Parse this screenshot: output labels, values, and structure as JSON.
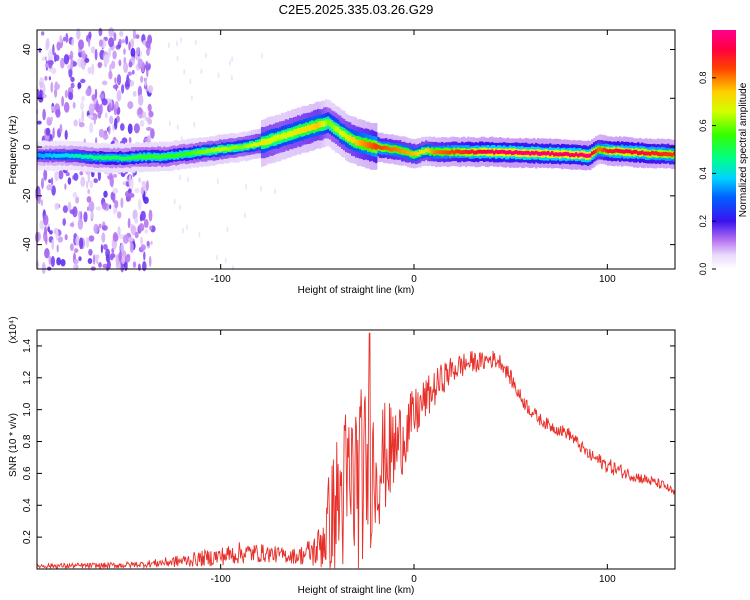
{
  "title": "C2E5.2025.335.03.26.G29",
  "chart_data": [
    {
      "type": "heatmap",
      "xlabel": "Height of straight line (km)",
      "ylabel": "Frequency (Hz)",
      "xlim": [
        -195,
        135
      ],
      "ylim": [
        -50,
        48
      ],
      "x_ticks": [
        -100,
        0,
        100
      ],
      "y_ticks": [
        -40,
        -20,
        0,
        20,
        40
      ],
      "colorbar": {
        "label": "Normalized spectral amplitude",
        "range": [
          0,
          1
        ],
        "ticks": [
          "0.0",
          "0.2",
          "0.4",
          "0.6",
          "0.8"
        ]
      },
      "ridge": {
        "x": [
          -195,
          -180,
          -160,
          -150,
          -140,
          -130,
          -120,
          -110,
          -100,
          -90,
          -80,
          -70,
          -60,
          -50,
          -45,
          -40,
          -35,
          -30,
          -25,
          -20,
          -10,
          0,
          5,
          10,
          20,
          40,
          60,
          80,
          90,
          95,
          100,
          110,
          120,
          135
        ],
        "freq": [
          -3.5,
          -3.5,
          -4.5,
          -4.5,
          -4,
          -4,
          -3,
          -2,
          -1,
          0,
          1.5,
          4,
          6.5,
          9,
          10,
          7,
          4,
          2,
          1,
          0,
          -1,
          -3,
          -1.5,
          -2,
          -2,
          -2,
          -2.5,
          -3,
          -3.5,
          -1,
          -1.5,
          -2,
          -2.5,
          -3
        ],
        "amplitude": [
          0.35,
          0.4,
          0.5,
          0.5,
          0.55,
          0.55,
          0.55,
          0.6,
          0.65,
          0.6,
          0.7,
          0.65,
          0.7,
          0.75,
          0.6,
          0.65,
          0.7,
          0.75,
          0.8,
          0.85,
          0.8,
          0.75,
          0.7,
          0.8,
          0.85,
          0.95,
          0.98,
          0.95,
          0.98,
          0.8,
          0.9,
          0.92,
          0.9,
          0.85
        ]
      },
      "noise_region": {
        "x": [
          -195,
          -135
        ],
        "amplitude": 0.1
      }
    },
    {
      "type": "line",
      "xlabel": "Height of straight line (km)",
      "ylabel": "SNR (10 * v/v)",
      "y_multiplier": "(x10⁴)",
      "xlim": [
        -195,
        135
      ],
      "ylim": [
        0,
        1.5
      ],
      "x_ticks": [
        -100,
        0,
        100
      ],
      "y_ticks": [
        0.2,
        0.4,
        0.6,
        0.8,
        1.0,
        1.2,
        1.4
      ],
      "y_tick_labels": [
        "0.2",
        "0.4",
        "0.6",
        "0.8",
        "1.0",
        "1.2",
        "1.4"
      ],
      "color": "#e8302a",
      "envelope": {
        "x": [
          -195,
          -160,
          -140,
          -120,
          -100,
          -90,
          -80,
          -70,
          -60,
          -50,
          -45,
          -40,
          -35,
          -30,
          -25,
          -20,
          -15,
          -10,
          -5,
          0,
          5,
          10,
          15,
          20,
          25,
          30,
          35,
          40,
          45,
          50,
          55,
          60,
          65,
          70,
          80,
          90,
          100,
          110,
          120,
          130,
          135
        ],
        "mean": [
          0.02,
          0.02,
          0.03,
          0.05,
          0.08,
          0.1,
          0.1,
          0.09,
          0.08,
          0.12,
          0.25,
          0.4,
          0.5,
          0.55,
          0.6,
          0.65,
          0.7,
          0.75,
          0.85,
          0.95,
          1.05,
          1.12,
          1.2,
          1.25,
          1.28,
          1.3,
          1.3,
          1.32,
          1.3,
          1.2,
          1.08,
          1.0,
          0.94,
          0.9,
          0.85,
          0.72,
          0.65,
          0.6,
          0.56,
          0.52,
          0.47
        ],
        "spread": [
          0.015,
          0.02,
          0.02,
          0.04,
          0.06,
          0.07,
          0.06,
          0.05,
          0.05,
          0.12,
          0.3,
          0.45,
          0.55,
          0.6,
          0.55,
          0.45,
          0.35,
          0.3,
          0.22,
          0.18,
          0.14,
          0.12,
          0.1,
          0.09,
          0.08,
          0.07,
          0.06,
          0.06,
          0.05,
          0.05,
          0.05,
          0.045,
          0.04,
          0.04,
          0.04,
          0.04,
          0.05,
          0.04,
          0.035,
          0.03,
          0.025
        ]
      },
      "peak": {
        "x": -23,
        "value": 1.48
      }
    }
  ]
}
